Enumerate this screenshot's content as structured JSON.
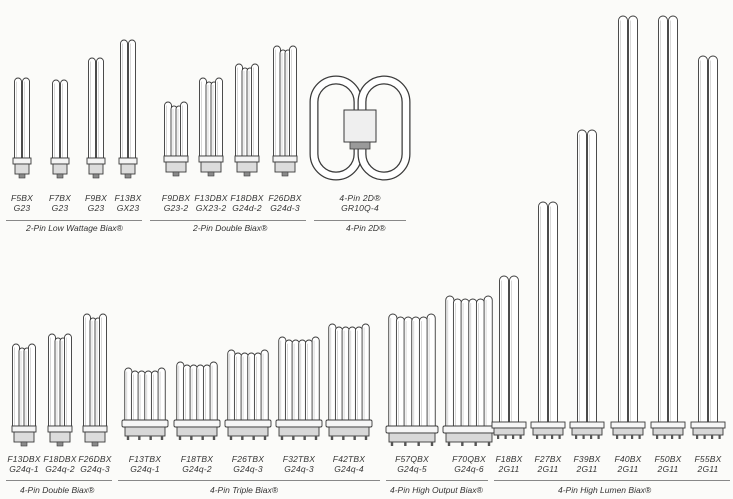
{
  "families": [
    {
      "id": "2pin-low-wattage",
      "label": "2-Pin Low Wattage Biax®",
      "lamps": [
        {
          "model": "F5BX",
          "base": "G23",
          "type": "twin"
        },
        {
          "model": "F7BX",
          "base": "G23",
          "type": "twin"
        },
        {
          "model": "F9BX",
          "base": "G23",
          "type": "twin"
        },
        {
          "model": "F13BX",
          "base": "GX23",
          "type": "twin"
        }
      ]
    },
    {
      "id": "2pin-double",
      "label": "2-Pin Double Biax®",
      "lamps": [
        {
          "model": "F9DBX",
          "base": "G23-2",
          "type": "double"
        },
        {
          "model": "F13DBX",
          "base": "GX23-2",
          "type": "double"
        },
        {
          "model": "F18DBX",
          "base": "G24d-2",
          "type": "double"
        },
        {
          "model": "F26DBX",
          "base": "G24d-3",
          "type": "double"
        }
      ]
    },
    {
      "id": "4pin-2d",
      "label": "4-Pin 2D®",
      "lamps": [
        {
          "model": "4-Pin 2D®",
          "base": "GR10Q-4",
          "type": "2d"
        }
      ]
    },
    {
      "id": "4pin-double",
      "label": "4-Pin Double Biax®",
      "lamps": [
        {
          "model": "F13DBX",
          "base": "G24q-1",
          "type": "double"
        },
        {
          "model": "F18DBX",
          "base": "G24q-2",
          "type": "double"
        },
        {
          "model": "F26DBX",
          "base": "G24q-3",
          "type": "double"
        }
      ]
    },
    {
      "id": "4pin-triple",
      "label": "4-Pin Triple Biax®",
      "lamps": [
        {
          "model": "F13TBX",
          "base": "G24q-1",
          "type": "triple"
        },
        {
          "model": "F18TBX",
          "base": "G24q-2",
          "type": "triple"
        },
        {
          "model": "F26TBX",
          "base": "G24q-3",
          "type": "triple"
        },
        {
          "model": "F32TBX",
          "base": "G24q-3",
          "type": "triple"
        },
        {
          "model": "F42TBX",
          "base": "G24q-4",
          "type": "triple"
        }
      ]
    },
    {
      "id": "4pin-high-output",
      "label": "4-Pin High Output Biax®",
      "lamps": [
        {
          "model": "F57QBX",
          "base": "G24q-5",
          "type": "triple"
        },
        {
          "model": "F70QBX",
          "base": "G24q-6",
          "type": "triple"
        }
      ]
    },
    {
      "id": "4pin-high-lumen",
      "label": "4-Pin High Lumen Biax®",
      "lamps": [
        {
          "model": "F18BX",
          "base": "2G11",
          "type": "long"
        },
        {
          "model": "F27BX",
          "base": "2G11",
          "type": "long"
        },
        {
          "model": "F39BX",
          "base": "2G11",
          "type": "long"
        },
        {
          "model": "F40BX",
          "base": "2G11",
          "type": "long"
        },
        {
          "model": "F50BX",
          "base": "2G11",
          "type": "long"
        },
        {
          "model": "F55BX",
          "base": "2G11",
          "type": "long"
        }
      ]
    }
  ],
  "colors": {
    "ink": "#3a3a3a",
    "glass": "#ffffff",
    "background": "#fbfbf9"
  }
}
